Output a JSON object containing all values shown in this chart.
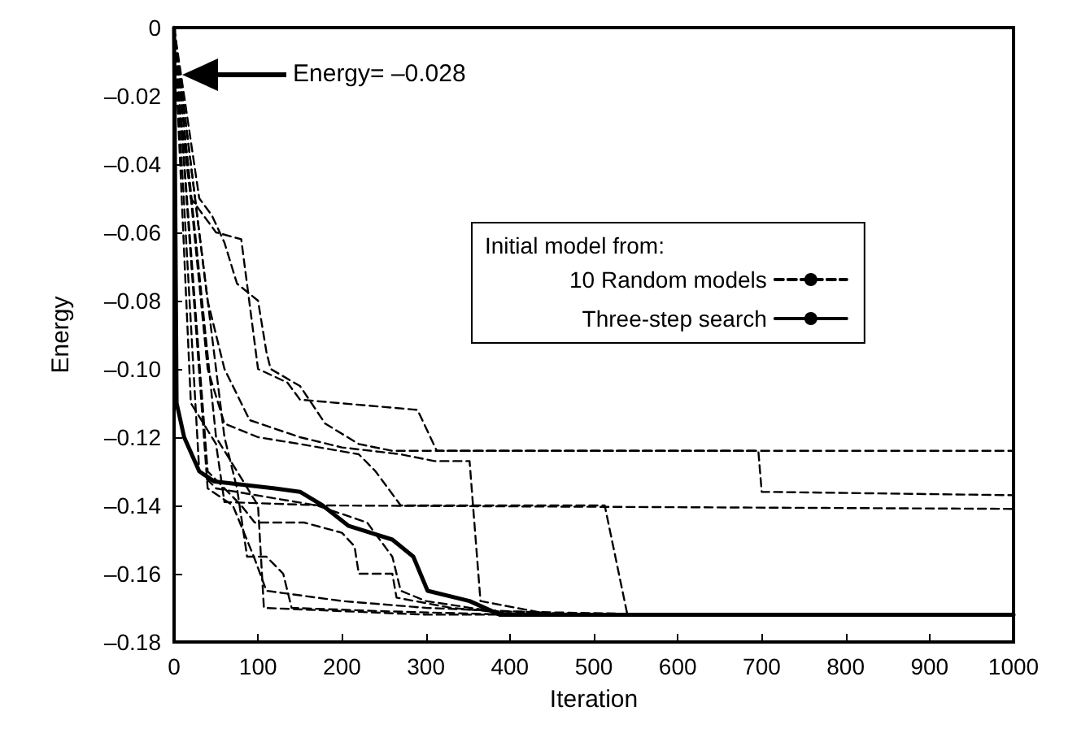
{
  "chart_data": {
    "type": "line",
    "xlabel": "Iteration",
    "ylabel": "Energy",
    "legend_title": "Initial model from:",
    "xlim": [
      0,
      1000
    ],
    "xticks": [
      0,
      100,
      200,
      300,
      400,
      500,
      600,
      700,
      800,
      900,
      1000
    ],
    "ylim": [
      -0.18,
      0
    ],
    "yticks": [
      {
        "value": 0,
        "label": "0"
      },
      {
        "value": -0.02,
        "label": "–0.02"
      },
      {
        "value": -0.04,
        "label": "–0.04"
      },
      {
        "value": -0.06,
        "label": "–0.06"
      },
      {
        "value": -0.08,
        "label": "–0.08"
      },
      {
        "value": -0.1,
        "label": "–0.10"
      },
      {
        "value": -0.12,
        "label": "–0.12"
      },
      {
        "value": -0.14,
        "label": "–0.14"
      },
      {
        "value": -0.16,
        "label": "–0.16"
      },
      {
        "value": -0.18,
        "label": "–0.18"
      }
    ],
    "grid": false,
    "legend": "right",
    "marker": "none",
    "annotations": [
      "Energy= –0.028"
    ],
    "series": [
      {
        "name": "10 Random models",
        "color": "#000000",
        "line_style": "dashed",
        "x": [
          0,
          5,
          20,
          50,
          80,
          100,
          135,
          150,
          290,
          313,
          696,
          700,
          1000
        ],
        "values": [
          0,
          -0.02,
          -0.05,
          -0.06,
          -0.062,
          -0.1,
          -0.104,
          -0.109,
          -0.112,
          -0.124,
          -0.124,
          -0.136,
          -0.137
        ]
      },
      {
        "color": "#000000",
        "line_style": "dashed",
        "x": [
          0,
          30,
          45,
          60,
          75,
          100,
          110,
          115,
          150,
          180,
          220,
          260,
          1000
        ],
        "values": [
          0,
          -0.05,
          -0.055,
          -0.063,
          -0.075,
          -0.08,
          -0.095,
          -0.1,
          -0.105,
          -0.116,
          -0.122,
          -0.124,
          -0.124
        ]
      },
      {
        "color": "#000000",
        "line_style": "dashed",
        "x": [
          0,
          20,
          50,
          60,
          180,
          1000
        ],
        "values": [
          0,
          -0.11,
          -0.122,
          -0.139,
          -0.14,
          -0.141
        ]
      },
      {
        "color": "#000000",
        "line_style": "dashed",
        "x": [
          0,
          40,
          60,
          100,
          150,
          220,
          240,
          270,
          513,
          540,
          1000
        ],
        "values": [
          0,
          -0.1,
          -0.116,
          -0.12,
          -0.122,
          -0.125,
          -0.13,
          -0.14,
          -0.14,
          -0.172,
          -0.172
        ]
      },
      {
        "color": "#000000",
        "line_style": "dashed",
        "x": [
          0,
          40,
          60,
          90,
          150,
          200,
          270,
          310,
          352,
          365,
          450,
          1000
        ],
        "values": [
          0,
          -0.08,
          -0.1,
          -0.115,
          -0.12,
          -0.123,
          -0.125,
          -0.127,
          -0.127,
          -0.168,
          -0.172,
          -0.172
        ]
      },
      {
        "color": "#000000",
        "line_style": "dashed",
        "x": [
          0,
          40,
          80,
          96,
          155,
          200,
          215,
          220,
          260,
          265,
          330,
          420,
          1000
        ],
        "values": [
          0,
          -0.13,
          -0.14,
          -0.145,
          -0.145,
          -0.148,
          -0.152,
          -0.16,
          -0.16,
          -0.167,
          -0.17,
          -0.172,
          -0.172
        ]
      },
      {
        "color": "#000000",
        "line_style": "dashed",
        "x": [
          0,
          60,
          75,
          87,
          110,
          130,
          140,
          250,
          400,
          1000
        ],
        "values": [
          0,
          -0.12,
          -0.135,
          -0.155,
          -0.155,
          -0.16,
          -0.17,
          -0.171,
          -0.172,
          -0.172
        ]
      },
      {
        "color": "#000000",
        "line_style": "dashed",
        "x": [
          0,
          50,
          100,
          107,
          300,
          1000
        ],
        "values": [
          0,
          -0.12,
          -0.14,
          -0.17,
          -0.172,
          -0.172
        ]
      },
      {
        "color": "#000000",
        "line_style": "dashed",
        "x": [
          0,
          40,
          70,
          95,
          110,
          200,
          300,
          500,
          1000
        ],
        "values": [
          0,
          -0.135,
          -0.14,
          -0.155,
          -0.165,
          -0.168,
          -0.17,
          -0.172,
          -0.172
        ]
      },
      {
        "color": "#000000",
        "line_style": "dashed",
        "x": [
          0,
          30,
          50,
          170,
          230,
          260,
          270,
          300,
          380,
          600,
          1000
        ],
        "values": [
          0,
          -0.13,
          -0.135,
          -0.14,
          -0.145,
          -0.155,
          -0.165,
          -0.168,
          -0.171,
          -0.172,
          -0.172
        ]
      },
      {
        "name": "Three-step search",
        "color": "#000000",
        "line_style": "solid",
        "x": [
          0,
          3,
          12,
          30,
          48,
          120,
          150,
          177,
          208,
          260,
          285,
          302,
          352,
          388,
          1000
        ],
        "values": [
          0,
          -0.11,
          -0.12,
          -0.13,
          -0.133,
          -0.135,
          -0.136,
          -0.14,
          -0.146,
          -0.15,
          -0.155,
          -0.165,
          -0.168,
          -0.172,
          -0.172
        ]
      }
    ]
  }
}
